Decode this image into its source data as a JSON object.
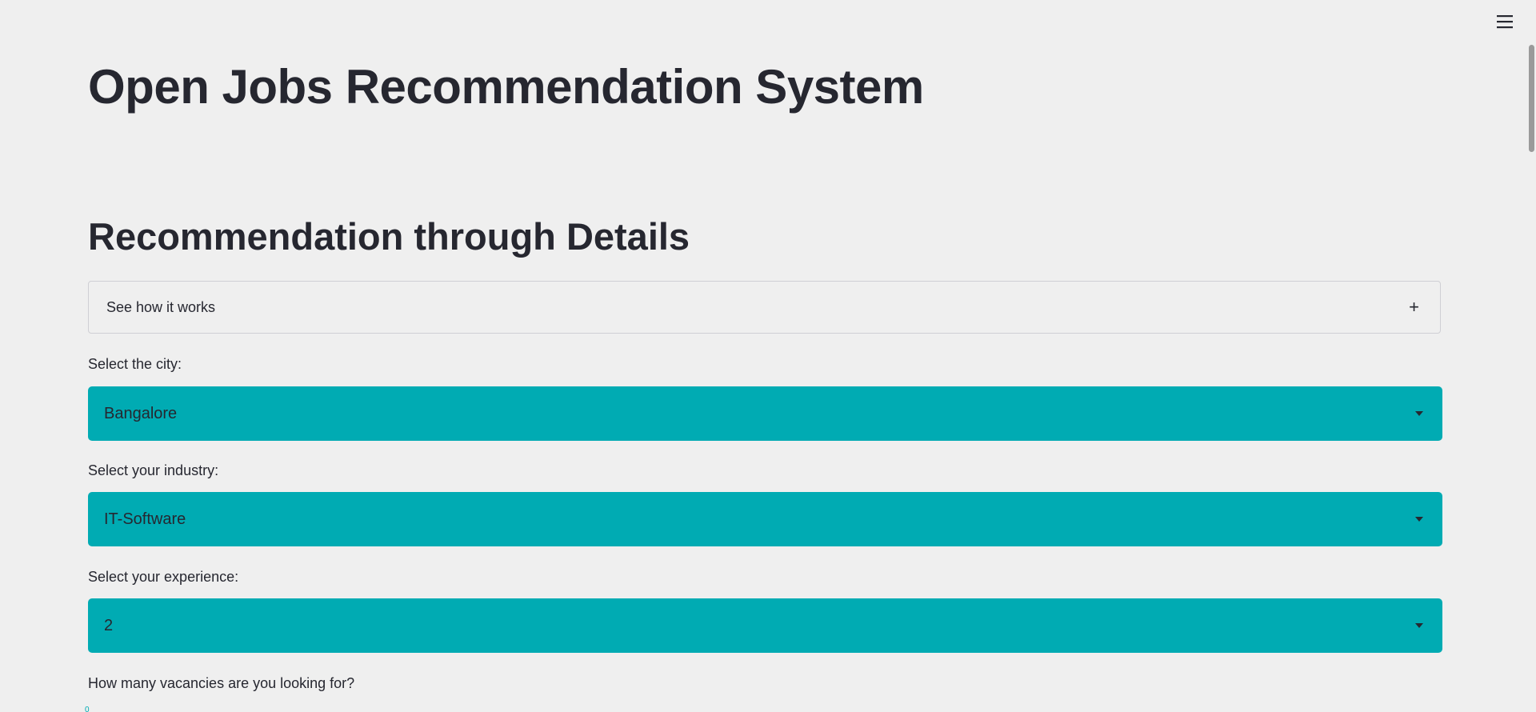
{
  "header": {
    "menu_icon": "hamburger-menu-icon"
  },
  "main": {
    "title": "Open Jobs Recommendation System",
    "section_title": "Recommendation through Details",
    "expander": {
      "label": "See how it works",
      "icon": "+"
    },
    "fields": [
      {
        "label": "Select the city:",
        "value": "Bangalore"
      },
      {
        "label": "Select your industry:",
        "value": "IT-Software"
      },
      {
        "label": "Select your experience:",
        "value": "2"
      }
    ],
    "vacancies_label": "How many vacancies are you looking for?",
    "slider_min": "0"
  },
  "colors": {
    "background": "#efefef",
    "select_background": "#00abb3",
    "text": "#262730"
  }
}
